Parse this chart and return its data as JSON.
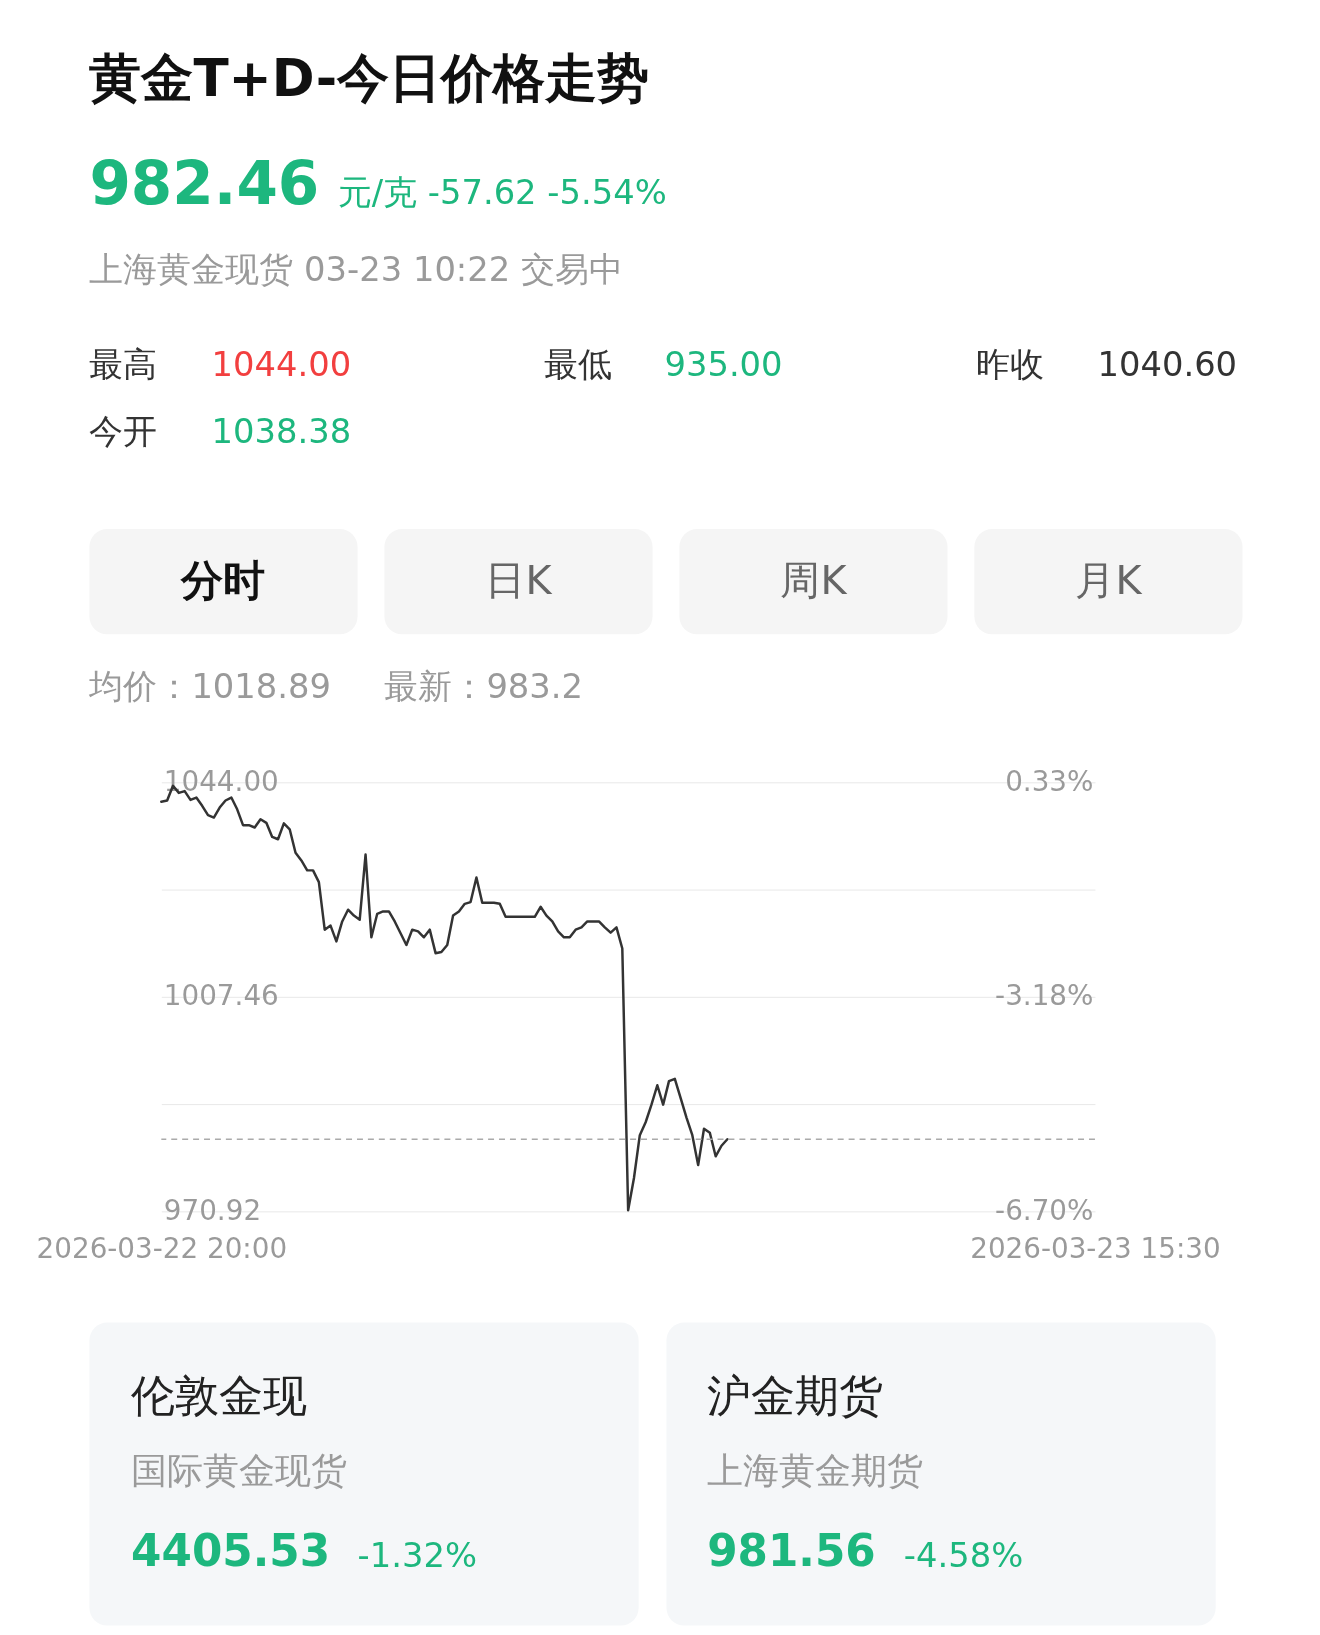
{
  "chart_data": {
    "type": "line",
    "title": "黄金T+D-今日价格走势",
    "categories": [
      "2026-03-22 20:00",
      null,
      null,
      null,
      null,
      null,
      null,
      null,
      null,
      null,
      null,
      null,
      null,
      null,
      null,
      null,
      null,
      null,
      null,
      null,
      null,
      null,
      null,
      null,
      null,
      null,
      null,
      null,
      null,
      null,
      null,
      null,
      null,
      null,
      null,
      null,
      null,
      null,
      null,
      null,
      null,
      null,
      null,
      null,
      null,
      null,
      null,
      null,
      null,
      null,
      null,
      null,
      null,
      null,
      null,
      null,
      null,
      null,
      null,
      null,
      null,
      null,
      null,
      null,
      null,
      null,
      null,
      null,
      null,
      null,
      null,
      null,
      null,
      null,
      null,
      null,
      null,
      null,
      null,
      null,
      null,
      null,
      null,
      null,
      null,
      null,
      null,
      null,
      null,
      null,
      null,
      null,
      null,
      null,
      null,
      null,
      null,
      null,
      null,
      null,
      null,
      null,
      null,
      null,
      null,
      null,
      null,
      null,
      null,
      null,
      null,
      null,
      null,
      null,
      null,
      null,
      null,
      null,
      null,
      null,
      null,
      null,
      null,
      null,
      null,
      null,
      null,
      null,
      null,
      null,
      null,
      null,
      null,
      null,
      null,
      null,
      null,
      null,
      null,
      null,
      null,
      null,
      null,
      null,
      null,
      null,
      null,
      null,
      null,
      null,
      null,
      null,
      null,
      null,
      null,
      null,
      null,
      null,
      null,
      null,
      "2026-03-23 15:30"
    ],
    "series": [
      {
        "color": "#333333",
        "values": [
          1040.7,
          1040.9,
          1043.4,
          1042.2,
          1042.5,
          1041.0,
          1041.4,
          1040.0,
          1038.4,
          1038.0,
          1039.7,
          1040.9,
          1041.4,
          1039.4,
          1036.7,
          1036.7,
          1036.3,
          1037.7,
          1037.1,
          1034.7,
          1034.3,
          1037.0,
          1036.0,
          1032.0,
          1030.7,
          1029.0,
          1029.0,
          1027.0,
          1018.9,
          1019.6,
          1016.9,
          1020.3,
          1022.3,
          1021.3,
          1020.6,
          1031.7,
          1017.6,
          1021.6,
          1022.0,
          1022.0,
          1020.3,
          1018.3,
          1016.3,
          1018.9,
          1018.6,
          1017.6,
          1018.9,
          1014.9,
          1015.1,
          1016.3,
          1021.3,
          1022.0,
          1023.3,
          1023.6,
          1027.8,
          1023.5,
          1023.5,
          1023.5,
          1023.3,
          1021.1,
          1021.1,
          1021.1,
          1021.1,
          1021.1,
          1021.1,
          1022.8,
          1021.3,
          1020.3,
          1018.6,
          1017.6,
          1017.6,
          1018.9,
          1019.3,
          1020.3,
          1020.3,
          1020.3,
          1019.3,
          1018.4,
          1019.3,
          1015.7,
          971.1,
          976.6,
          983.9,
          986.1,
          989.1,
          992.4,
          989.1,
          993.1,
          993.5,
          990.2,
          986.9,
          983.9,
          978.8,
          985.0,
          984.3,
          980.3,
          982.1,
          983.2,
          null,
          null,
          null,
          null,
          null,
          null,
          null,
          null,
          null,
          null,
          null,
          null,
          null,
          null,
          null,
          null,
          null,
          null,
          null,
          null,
          null,
          null,
          null,
          null,
          null,
          null,
          null,
          null,
          null,
          null,
          null,
          null,
          null,
          null,
          null,
          null,
          null,
          null,
          null,
          null,
          null,
          null,
          null,
          null,
          null,
          null,
          null,
          null,
          null,
          null,
          null,
          null,
          null,
          null,
          null,
          null,
          null,
          null,
          null,
          null,
          null,
          null,
          null
        ]
      }
    ],
    "ylim": [
      970.92,
      1044.0
    ],
    "yticks": [
      {
        "value": 1044.0,
        "label": "1044.00"
      },
      {
        "value": 1025.73,
        "label": null
      },
      {
        "value": 1007.46,
        "label": "1007.46"
      },
      {
        "value": 989.19,
        "label": null
      },
      {
        "value": 970.92,
        "label": "970.92"
      }
    ],
    "y2lim": [
      -6.7,
      0.33
    ],
    "y2ticks": [
      {
        "value": 0.33,
        "label": "0.33%"
      },
      {
        "value": -3.18,
        "label": "-3.18%"
      },
      {
        "value": -6.7,
        "label": "-6.70%"
      }
    ],
    "grid": "y",
    "ref_lines": [
      {
        "axis": "y",
        "value": 983.2,
        "line_style": "dashed",
        "color": "#aaaaaa"
      }
    ],
    "annotations": [
      "982.46",
      "元/克 -57.62 -5.54%",
      "上海黄金现货 03-23 10:22 交易中",
      "最高",
      "1044.00",
      "最低",
      "935.00",
      "昨收",
      "1040.60",
      "今开",
      "1038.38",
      "分时",
      "日K",
      "周K",
      "月K",
      "均价：1018.89",
      "最新：983.2",
      "伦敦金现",
      "国际黄金现货",
      "4405.53",
      "-1.32%",
      "沪金期货",
      "上海黄金期货",
      "981.56",
      "-4.58%"
    ]
  }
}
